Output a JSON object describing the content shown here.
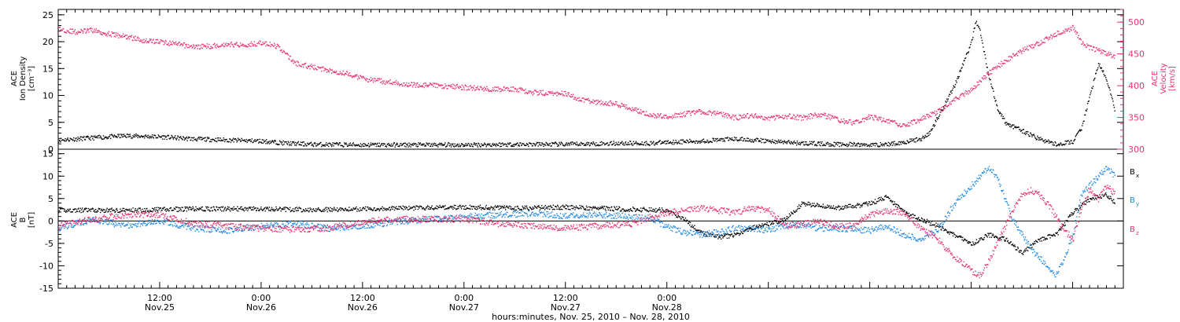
{
  "chart_data": [
    {
      "type": "scatter",
      "panel": "top",
      "left_axis": {
        "label_lines": [
          "ACE",
          "Ion Density",
          "[cm⁻³]"
        ],
        "ylim": [
          0,
          26
        ],
        "ticks": [
          0,
          5,
          10,
          15,
          20,
          25
        ],
        "color": "#000000"
      },
      "right_axis": {
        "label_lines": [
          "ACE",
          "Velocity",
          "[km/s]"
        ],
        "ylim": [
          300,
          520
        ],
        "ticks": [
          300,
          350,
          400,
          450,
          500
        ],
        "color": "#e8336b"
      },
      "series": [
        {
          "axis": "left",
          "color": "#000000",
          "points": [
            [
              0,
              1.8
            ],
            [
              4,
              2.2
            ],
            [
              8,
              2.6
            ],
            [
              12,
              2.4
            ],
            [
              16,
              2.0
            ],
            [
              20,
              1.8
            ],
            [
              24,
              1.6
            ],
            [
              27,
              1.2
            ],
            [
              30,
              1.0
            ],
            [
              36,
              0.9
            ],
            [
              42,
              0.9
            ],
            [
              48,
              0.9
            ],
            [
              54,
              1.0
            ],
            [
              60,
              1.0
            ],
            [
              66,
              1.2
            ],
            [
              70,
              1.2
            ],
            [
              72,
              1.4
            ],
            [
              76,
              1.6
            ],
            [
              80,
              2.0
            ],
            [
              84,
              1.6
            ],
            [
              88,
              1.2
            ],
            [
              92,
              1.0
            ],
            [
              96,
              0.9
            ],
            [
              98,
              1.0
            ],
            [
              100,
              1.4
            ],
            [
              102,
              2.0
            ],
            [
              103,
              3.0
            ],
            [
              104,
              6.0
            ],
            [
              105,
              9.0
            ],
            [
              106,
              12.0
            ],
            [
              107,
              16.0
            ],
            [
              108,
              20.0
            ],
            [
              108.5,
              24.0
            ],
            [
              109,
              22.0
            ],
            [
              110,
              14.0
            ],
            [
              111,
              8.0
            ],
            [
              112,
              5.0
            ],
            [
              114,
              3.5
            ],
            [
              116,
              2.0
            ],
            [
              118,
              1.0
            ],
            [
              120,
              1.5
            ],
            [
              121,
              4.0
            ],
            [
              122,
              10.0
            ],
            [
              123,
              16.0
            ],
            [
              124,
              13.0
            ],
            [
              125,
              7.0
            ]
          ]
        },
        {
          "axis": "right",
          "color": "#e8336b",
          "points": [
            [
              0,
              490
            ],
            [
              2,
              485
            ],
            [
              4,
              488
            ],
            [
              6,
              482
            ],
            [
              8,
              478
            ],
            [
              10,
              472
            ],
            [
              12,
              470
            ],
            [
              14,
              466
            ],
            [
              16,
              462
            ],
            [
              18,
              463
            ],
            [
              20,
              466
            ],
            [
              22,
              465
            ],
            [
              24,
              468
            ],
            [
              26,
              462
            ],
            [
              28,
              436
            ],
            [
              30,
              430
            ],
            [
              32,
              425
            ],
            [
              34,
              420
            ],
            [
              36,
              412
            ],
            [
              38,
              408
            ],
            [
              42,
              402
            ],
            [
              46,
              400
            ],
            [
              50,
              396
            ],
            [
              54,
              395
            ],
            [
              56,
              390
            ],
            [
              60,
              388
            ],
            [
              62,
              378
            ],
            [
              64,
              374
            ],
            [
              66,
              372
            ],
            [
              68,
              364
            ],
            [
              70,
              355
            ],
            [
              72,
              352
            ],
            [
              74,
              356
            ],
            [
              76,
              360
            ],
            [
              78,
              357
            ],
            [
              80,
              350
            ],
            [
              82,
              354
            ],
            [
              84,
              349
            ],
            [
              86,
              353
            ],
            [
              88,
              350
            ],
            [
              90,
              356
            ],
            [
              92,
              348
            ],
            [
              94,
              342
            ],
            [
              96,
              352
            ],
            [
              98,
              345
            ],
            [
              100,
              338
            ],
            [
              102,
              348
            ],
            [
              104,
              360
            ],
            [
              106,
              378
            ],
            [
              108,
              395
            ],
            [
              110,
              420
            ],
            [
              112,
              440
            ],
            [
              114,
              456
            ],
            [
              116,
              468
            ],
            [
              118,
              482
            ],
            [
              120,
              492
            ],
            [
              121,
              470
            ],
            [
              122,
              460
            ],
            [
              124,
              452
            ],
            [
              125,
              445
            ]
          ]
        }
      ]
    },
    {
      "type": "scatter",
      "panel": "bottom",
      "left_axis": {
        "label_lines": [
          "ACE",
          "B",
          "[nT]"
        ],
        "ylim": [
          -15,
          16
        ],
        "ticks": [
          -15,
          -10,
          -5,
          0,
          5,
          10,
          15
        ]
      },
      "series": [
        {
          "name": "B",
          "sub": "x",
          "color": "#000000",
          "points": [
            [
              0,
              2.5
            ],
            [
              8,
              2.5
            ],
            [
              16,
              2.8
            ],
            [
              24,
              2.8
            ],
            [
              30,
              2.6
            ],
            [
              36,
              2.8
            ],
            [
              42,
              3.0
            ],
            [
              48,
              3.2
            ],
            [
              54,
              3.0
            ],
            [
              60,
              3.2
            ],
            [
              66,
              2.8
            ],
            [
              72,
              2.5
            ],
            [
              74,
              0.5
            ],
            [
              76,
              -2.5
            ],
            [
              78,
              -3.5
            ],
            [
              80,
              -3.0
            ],
            [
              82,
              -1.5
            ],
            [
              84,
              -0.5
            ],
            [
              86,
              0.5
            ],
            [
              88,
              4.0
            ],
            [
              90,
              3.5
            ],
            [
              92,
              3.0
            ],
            [
              94,
              3.4
            ],
            [
              96,
              4.0
            ],
            [
              98,
              5.5
            ],
            [
              100,
              2.0
            ],
            [
              102,
              0.5
            ],
            [
              104,
              -1.0
            ],
            [
              106,
              -3.0
            ],
            [
              108,
              -5.0
            ],
            [
              110,
              -3.0
            ],
            [
              112,
              -4.0
            ],
            [
              114,
              -7.0
            ],
            [
              116,
              -4.0
            ],
            [
              118,
              -3.0
            ],
            [
              120,
              2.0
            ],
            [
              122,
              5.0
            ],
            [
              124,
              6.0
            ],
            [
              125,
              4.0
            ]
          ]
        },
        {
          "name": "B",
          "sub": "y",
          "color": "#1e88e5",
          "points": [
            [
              0,
              -1.5
            ],
            [
              4,
              0.5
            ],
            [
              8,
              -1.0
            ],
            [
              12,
              0.2
            ],
            [
              16,
              -1.5
            ],
            [
              20,
              -2.0
            ],
            [
              24,
              -1.0
            ],
            [
              28,
              -0.5
            ],
            [
              32,
              -1.5
            ],
            [
              36,
              -1.0
            ],
            [
              40,
              0.0
            ],
            [
              44,
              0.5
            ],
            [
              48,
              1.0
            ],
            [
              52,
              1.5
            ],
            [
              56,
              1.8
            ],
            [
              60,
              1.2
            ],
            [
              64,
              1.5
            ],
            [
              68,
              1.0
            ],
            [
              70,
              0.5
            ],
            [
              72,
              -1.0
            ],
            [
              74,
              -2.5
            ],
            [
              76,
              -2.8
            ],
            [
              78,
              -2.5
            ],
            [
              80,
              -1.5
            ],
            [
              82,
              -1.5
            ],
            [
              84,
              -2.0
            ],
            [
              86,
              -0.8
            ],
            [
              88,
              -1.0
            ],
            [
              90,
              -1.5
            ],
            [
              92,
              -1.5
            ],
            [
              94,
              -1.8
            ],
            [
              96,
              -2.0
            ],
            [
              98,
              -1.0
            ],
            [
              100,
              -3.0
            ],
            [
              102,
              -4.0
            ],
            [
              104,
              -2.0
            ],
            [
              106,
              4.0
            ],
            [
              108,
              8.0
            ],
            [
              110,
              12.0
            ],
            [
              111,
              10.0
            ],
            [
              112,
              5.0
            ],
            [
              113,
              0.0
            ],
            [
              114,
              -3.0
            ],
            [
              115,
              -6.0
            ],
            [
              116,
              -8.0
            ],
            [
              117,
              -10.0
            ],
            [
              118,
              -12.0
            ],
            [
              119,
              -8.0
            ],
            [
              120,
              -3.0
            ],
            [
              121,
              6.0
            ],
            [
              122,
              8.0
            ],
            [
              123,
              10.0
            ],
            [
              124,
              12.0
            ],
            [
              125,
              10.0
            ]
          ]
        },
        {
          "name": "B",
          "sub": "z",
          "color": "#e8336b",
          "points": [
            [
              0,
              -1.0
            ],
            [
              4,
              0.5
            ],
            [
              8,
              1.5
            ],
            [
              12,
              1.5
            ],
            [
              16,
              -0.5
            ],
            [
              20,
              -1.0
            ],
            [
              24,
              -1.5
            ],
            [
              28,
              -1.8
            ],
            [
              32,
              -1.5
            ],
            [
              36,
              0.0
            ],
            [
              40,
              0.5
            ],
            [
              44,
              0.5
            ],
            [
              48,
              0.5
            ],
            [
              52,
              -0.5
            ],
            [
              56,
              -1.0
            ],
            [
              60,
              -1.5
            ],
            [
              64,
              -1.0
            ],
            [
              68,
              -0.5
            ],
            [
              70,
              1.0
            ],
            [
              72,
              2.0
            ],
            [
              74,
              2.5
            ],
            [
              76,
              3.0
            ],
            [
              78,
              2.5
            ],
            [
              80,
              2.0
            ],
            [
              82,
              3.0
            ],
            [
              84,
              2.5
            ],
            [
              86,
              -1.0
            ],
            [
              88,
              -0.5
            ],
            [
              90,
              0.0
            ],
            [
              92,
              -1.0
            ],
            [
              94,
              -1.0
            ],
            [
              96,
              1.5
            ],
            [
              98,
              2.5
            ],
            [
              100,
              2.0
            ],
            [
              102,
              -1.5
            ],
            [
              104,
              -4.0
            ],
            [
              106,
              -8.0
            ],
            [
              108,
              -11.0
            ],
            [
              109,
              -12.0
            ],
            [
              110,
              -9.0
            ],
            [
              111,
              -5.0
            ],
            [
              112,
              -1.0
            ],
            [
              113,
              3.0
            ],
            [
              114,
              6.0
            ],
            [
              115,
              7.0
            ],
            [
              116,
              6.0
            ],
            [
              117,
              4.0
            ],
            [
              118,
              1.0
            ],
            [
              119,
              -2.0
            ],
            [
              120,
              -4.0
            ],
            [
              121,
              3.0
            ],
            [
              122,
              7.0
            ],
            [
              123,
              5.0
            ],
            [
              124,
              8.0
            ],
            [
              125,
              6.0
            ]
          ]
        }
      ]
    }
  ],
  "x_axis": {
    "xlim_hours": [
      0,
      126
    ],
    "ticks": [
      {
        "hour": 12,
        "time": "12:00",
        "date": "Nov.25"
      },
      {
        "hour": 24,
        "time": "0:00",
        "date": "Nov.26"
      },
      {
        "hour": 36,
        "time": "12:00",
        "date": "Nov.26"
      },
      {
        "hour": 48,
        "time": "0:00",
        "date": "Nov.27"
      },
      {
        "hour": 60,
        "time": "12:00",
        "date": "Nov.27"
      },
      {
        "hour": 72,
        "time": "0:00",
        "date": "Nov.28"
      }
    ],
    "xlabel": "hours:minutes, Nov. 25, 2010 – Nov. 28, 2010"
  },
  "labels": {
    "top_left": [
      "ACE",
      "Ion Density",
      "[cm⁻³]"
    ],
    "top_right": [
      "ACE",
      "Velocity",
      "[km/s]"
    ],
    "bottom_left": [
      "ACE",
      "B",
      "[nT]"
    ],
    "bottom_legend": [
      {
        "name": "B",
        "sub": "x"
      },
      {
        "name": "B",
        "sub": "y"
      },
      {
        "name": "B",
        "sub": "z"
      }
    ]
  }
}
